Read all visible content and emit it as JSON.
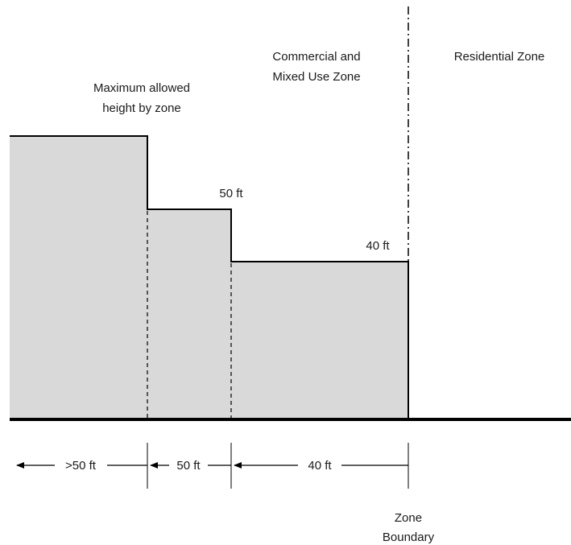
{
  "labels": {
    "max_height_line1": "Maximum allowed",
    "max_height_line2": "height by zone",
    "commercial_line1": "Commercial and",
    "commercial_line2": "Mixed Use Zone",
    "residential": "Residential Zone",
    "height_50": "50 ft",
    "height_40": "40 ft",
    "dist_gt50": ">50 ft",
    "dist_50": "50 ft",
    "dist_40": "40 ft",
    "boundary_line1": "Zone",
    "boundary_line2": "Boundary"
  },
  "colors": {
    "fill": "#d9d9d9",
    "stroke": "#000000"
  }
}
